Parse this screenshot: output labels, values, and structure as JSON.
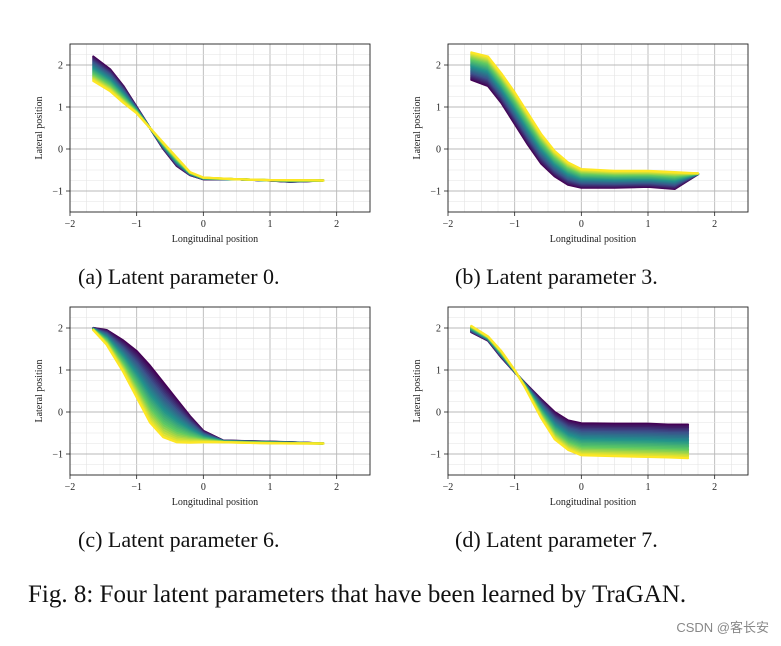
{
  "figure": {
    "caption": "Fig. 8: Four latent parameters that have been learned by TraGAN.",
    "watermark": "CSDN @客长安"
  },
  "chart_data": [
    {
      "type": "line",
      "id": "a",
      "subcaption": "(a) Latent parameter 0.",
      "xlabel": "Longitudinal position",
      "ylabel": "Lateral position",
      "xlim": [
        -2,
        2.5
      ],
      "ylim": [
        -1.5,
        2.5
      ],
      "xticks": [
        "−2",
        "−1",
        "0",
        "1",
        "2"
      ],
      "yticks": [
        "2",
        "1",
        "0",
        "−1"
      ],
      "grid": true,
      "colormap": [
        "#440154",
        "#3b528b",
        "#21918c",
        "#5ec962",
        "#fde725"
      ],
      "n_curves": 24,
      "x": [
        -1.65,
        -1.4,
        -1.2,
        -1.0,
        -0.8,
        -0.6,
        -0.4,
        -0.2,
        0.0,
        0.5,
        1.0,
        1.3,
        1.8
      ],
      "series_first": [
        2.2,
        1.9,
        1.5,
        1.0,
        0.5,
        0.0,
        -0.4,
        -0.62,
        -0.72,
        -0.72,
        -0.75,
        -0.78,
        -0.75
      ],
      "series_last": [
        1.62,
        1.38,
        1.1,
        0.85,
        0.5,
        0.15,
        -0.2,
        -0.55,
        -0.68,
        -0.72,
        -0.74,
        -0.74,
        -0.75
      ]
    },
    {
      "type": "line",
      "id": "b",
      "subcaption": "(b) Latent parameter 3.",
      "xlabel": "Longitudinal position",
      "ylabel": "Lateral position",
      "xlim": [
        -2,
        2.5
      ],
      "ylim": [
        -1.5,
        2.5
      ],
      "xticks": [
        "−2",
        "−1",
        "0",
        "1",
        "2"
      ],
      "yticks": [
        "2",
        "1",
        "0",
        "−1"
      ],
      "grid": true,
      "colormap": [
        "#440154",
        "#3b528b",
        "#21918c",
        "#5ec962",
        "#fde725"
      ],
      "n_curves": 24,
      "x": [
        -1.65,
        -1.4,
        -1.2,
        -1.0,
        -0.8,
        -0.6,
        -0.4,
        -0.2,
        0.0,
        0.5,
        1.0,
        1.4,
        1.75
      ],
      "series_first": [
        1.65,
        1.5,
        1.1,
        0.6,
        0.1,
        -0.35,
        -0.65,
        -0.85,
        -0.92,
        -0.92,
        -0.9,
        -0.95,
        -0.6
      ],
      "series_last": [
        2.3,
        2.2,
        1.8,
        1.35,
        0.85,
        0.35,
        -0.05,
        -0.32,
        -0.48,
        -0.52,
        -0.52,
        -0.55,
        -0.58
      ]
    },
    {
      "type": "line",
      "id": "c",
      "subcaption": "(c) Latent parameter 6.",
      "xlabel": "Longitudinal position",
      "ylabel": "Lateral position",
      "xlim": [
        -2,
        2.5
      ],
      "ylim": [
        -1.5,
        2.5
      ],
      "xticks": [
        "−2",
        "−1",
        "0",
        "1",
        "2"
      ],
      "yticks": [
        "2",
        "1",
        "0",
        "−1"
      ],
      "grid": true,
      "colormap": [
        "#440154",
        "#3b528b",
        "#21918c",
        "#5ec962",
        "#fde725"
      ],
      "n_curves": 24,
      "x": [
        -1.65,
        -1.45,
        -1.2,
        -1.0,
        -0.8,
        -0.6,
        -0.4,
        -0.2,
        0.0,
        0.3,
        0.8,
        1.3,
        1.8
      ],
      "series_first": [
        2.0,
        1.95,
        1.7,
        1.45,
        1.1,
        0.7,
        0.3,
        -0.1,
        -0.45,
        -0.68,
        -0.7,
        -0.72,
        -0.75
      ],
      "series_last": [
        1.95,
        1.6,
        0.95,
        0.35,
        -0.25,
        -0.6,
        -0.72,
        -0.73,
        -0.72,
        -0.72,
        -0.74,
        -0.75,
        -0.75
      ]
    },
    {
      "type": "line",
      "id": "d",
      "subcaption": "(d) Latent parameter 7.",
      "xlabel": "Longitudinal position",
      "ylabel": "Lateral position",
      "xlim": [
        -2,
        2.5
      ],
      "ylim": [
        -1.5,
        2.5
      ],
      "xticks": [
        "−2",
        "−1",
        "0",
        "1",
        "2"
      ],
      "yticks": [
        "2",
        "1",
        "0",
        "−1"
      ],
      "grid": true,
      "colormap": [
        "#440154",
        "#3b528b",
        "#21918c",
        "#5ec962",
        "#fde725"
      ],
      "n_curves": 24,
      "x": [
        -1.65,
        -1.4,
        -1.2,
        -1.0,
        -0.85,
        -0.6,
        -0.4,
        -0.2,
        0.0,
        0.5,
        1.0,
        1.3,
        1.6
      ],
      "series_first": [
        1.9,
        1.7,
        1.3,
        0.95,
        0.7,
        0.3,
        0.0,
        -0.2,
        -0.27,
        -0.28,
        -0.28,
        -0.3,
        -0.3
      ],
      "series_last": [
        2.05,
        1.8,
        1.45,
        1.0,
        0.6,
        -0.15,
        -0.65,
        -0.9,
        -1.03,
        -1.05,
        -1.07,
        -1.08,
        -1.1
      ]
    }
  ]
}
